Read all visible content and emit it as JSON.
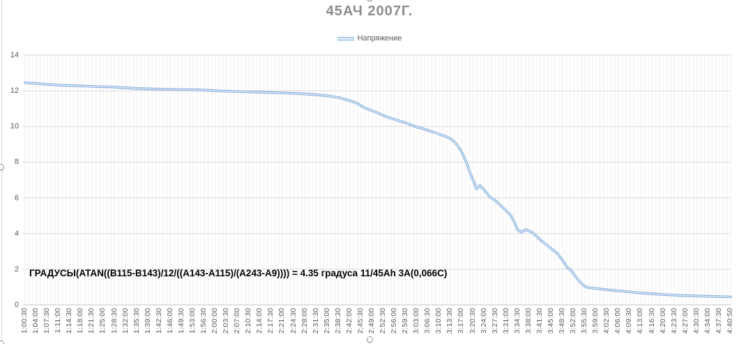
{
  "chart": {
    "annotation": "ГРАДУСЫ(ATAN((B115-B143)/12/((A143-A115)/(A243-A9)))) = 4.35 градуса 11/45Ah 3А(0,066С)"
  },
  "colors": {
    "title": "#8c8c8c",
    "axis_text": "#595959",
    "h_gridline": "#d9d9d9",
    "v_gridline": "#efefef",
    "axis_line": "#c6c6c6",
    "series_outer": "#85aedb",
    "series_inner": "#dce9f6",
    "annotation_text": "#000000"
  },
  "chart_data": {
    "type": "line",
    "title": "45АЧ 2007Г.",
    "xlabel": "",
    "ylabel": "",
    "ylim": [
      0,
      14
    ],
    "yticks": [
      0,
      2,
      4,
      6,
      8,
      10,
      12,
      14
    ],
    "grid": true,
    "legend_position": "top-center",
    "minor_x_divisions_per_label": 3,
    "x_labels": [
      "1:00:30",
      "1:04:00",
      "1:07:30",
      "1:11:00",
      "1:14:30",
      "1:18:00",
      "1:21:30",
      "1:25:00",
      "1:28:30",
      "1:32:00",
      "1:35:30",
      "1:39:00",
      "1:42:30",
      "1:46:00",
      "1:49:30",
      "1:53:00",
      "1:56:30",
      "2:00:00",
      "2:03:30",
      "2:07:00",
      "2:10:30",
      "2:14:00",
      "2:17:30",
      "2:21:00",
      "2:24:30",
      "2:28:00",
      "2:31:30",
      "2:35:00",
      "2:38:30",
      "2:42:00",
      "2:45:30",
      "2:49:00",
      "2:52:30",
      "2:56:00",
      "2:59:30",
      "3:03:00",
      "3:06:30",
      "3:10:00",
      "3:13:30",
      "3:17:00",
      "3:20:30",
      "3:24:00",
      "3:27:30",
      "3:31:00",
      "3:34:30",
      "3:38:00",
      "3:41:30",
      "3:45:00",
      "3:48:30",
      "3:52:00",
      "3:55:30",
      "3:59:00",
      "4:02:30",
      "4:06:00",
      "4:09:30",
      "4:13:00",
      "4:16:30",
      "4:20:00",
      "4:23:30",
      "4:27:00",
      "4:30:30",
      "4:34:00",
      "4:37:30",
      "4:40:50"
    ],
    "series": [
      {
        "name": "Напряжение",
        "color": "#9dc3e6",
        "points": [
          [
            0,
            12.45
          ],
          [
            1,
            12.41
          ],
          [
            2,
            12.36
          ],
          [
            3,
            12.32
          ],
          [
            4,
            12.29
          ],
          [
            5,
            12.27
          ],
          [
            6,
            12.25
          ],
          [
            7,
            12.23
          ],
          [
            8,
            12.21
          ],
          [
            9,
            12.17
          ],
          [
            10,
            12.13
          ],
          [
            11,
            12.11
          ],
          [
            12,
            12.09
          ],
          [
            13,
            12.08
          ],
          [
            14,
            12.07
          ],
          [
            15,
            12.06
          ],
          [
            16,
            12.04
          ],
          [
            17,
            12.01
          ],
          [
            18,
            11.98
          ],
          [
            19,
            11.96
          ],
          [
            20,
            11.94
          ],
          [
            21,
            11.92
          ],
          [
            22,
            11.9
          ],
          [
            23,
            11.88
          ],
          [
            24,
            11.86
          ],
          [
            25,
            11.82
          ],
          [
            26,
            11.78
          ],
          [
            27,
            11.72
          ],
          [
            28,
            11.62
          ],
          [
            29,
            11.45
          ],
          [
            29.7,
            11.28
          ],
          [
            30.3,
            11.05
          ],
          [
            31,
            10.88
          ],
          [
            31.5,
            10.75
          ],
          [
            32,
            10.62
          ],
          [
            32.5,
            10.5
          ],
          [
            33,
            10.4
          ],
          [
            33.5,
            10.3
          ],
          [
            34,
            10.2
          ],
          [
            34.5,
            10.08
          ],
          [
            35,
            9.96
          ],
          [
            35.5,
            9.88
          ],
          [
            36,
            9.78
          ],
          [
            36.5,
            9.68
          ],
          [
            37,
            9.56
          ],
          [
            37.5,
            9.46
          ],
          [
            38,
            9.32
          ],
          [
            38.4,
            9.1
          ],
          [
            38.7,
            8.85
          ],
          [
            39,
            8.55
          ],
          [
            39.4,
            8.0
          ],
          [
            39.8,
            7.3
          ],
          [
            40.1,
            6.85
          ],
          [
            40.3,
            6.5
          ],
          [
            40.6,
            6.7
          ],
          [
            41,
            6.45
          ],
          [
            41.5,
            6.05
          ],
          [
            42,
            5.85
          ],
          [
            42.5,
            5.55
          ],
          [
            43,
            5.25
          ],
          [
            43.4,
            5.0
          ],
          [
            43.7,
            4.6
          ],
          [
            44,
            4.2
          ],
          [
            44.3,
            4.08
          ],
          [
            44.7,
            4.22
          ],
          [
            45.2,
            4.1
          ],
          [
            45.5,
            3.95
          ],
          [
            46,
            3.65
          ],
          [
            46.5,
            3.4
          ],
          [
            47,
            3.15
          ],
          [
            47.5,
            2.9
          ],
          [
            48,
            2.5
          ],
          [
            48.4,
            2.1
          ],
          [
            48.8,
            1.9
          ],
          [
            49.2,
            1.55
          ],
          [
            49.6,
            1.25
          ],
          [
            50,
            1.03
          ],
          [
            50.3,
            0.97
          ],
          [
            51,
            0.92
          ],
          [
            52,
            0.85
          ],
          [
            53,
            0.79
          ],
          [
            54,
            0.73
          ],
          [
            55,
            0.67
          ],
          [
            56,
            0.62
          ],
          [
            57,
            0.58
          ],
          [
            58,
            0.55
          ],
          [
            59,
            0.52
          ],
          [
            60,
            0.5
          ],
          [
            61,
            0.48
          ],
          [
            62,
            0.46
          ],
          [
            63,
            0.45
          ]
        ]
      }
    ]
  }
}
